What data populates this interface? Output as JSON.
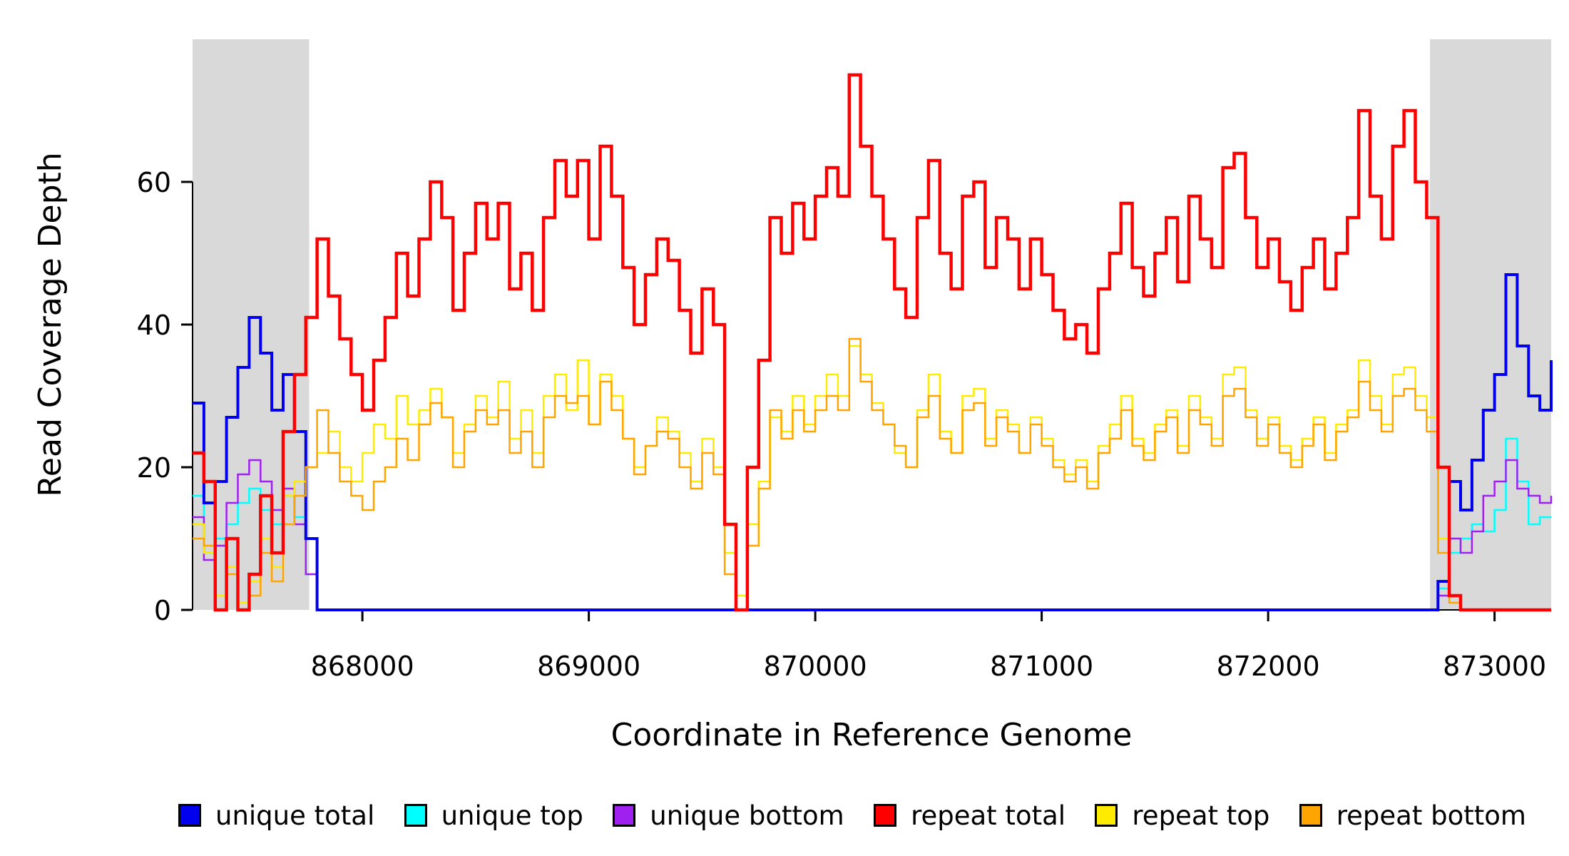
{
  "figure": {
    "background": "#FFFFFF"
  },
  "chart_data": {
    "type": "line",
    "title": "",
    "xlabel": "Coordinate in Reference Genome",
    "ylabel": "Read Coverage Depth",
    "xlim": [
      867250,
      873250
    ],
    "ylim": [
      0,
      80
    ],
    "x_ticks": [
      868000,
      869000,
      870000,
      871000,
      872000,
      873000
    ],
    "y_ticks": [
      0,
      20,
      40,
      60
    ],
    "grid": false,
    "step": true,
    "legend_position": "bottom",
    "x_start": 867250,
    "x_step": 50,
    "shaded_regions": {
      "color": "#D9D9D9",
      "ranges": [
        [
          867250,
          867765
        ],
        [
          872715,
          873250
        ]
      ]
    },
    "series": [
      {
        "name": "unique total",
        "color": "#0000EE",
        "values": [
          29,
          15,
          18,
          27,
          34,
          41,
          36,
          28,
          33,
          25,
          10,
          0,
          0,
          0,
          0,
          0,
          0,
          0,
          0,
          0,
          0,
          0,
          0,
          0,
          0,
          0,
          0,
          0,
          0,
          0,
          0,
          0,
          0,
          0,
          0,
          0,
          0,
          0,
          0,
          0,
          0,
          0,
          0,
          0,
          0,
          0,
          0,
          0,
          0,
          0,
          0,
          0,
          0,
          0,
          0,
          0,
          0,
          0,
          0,
          0,
          0,
          0,
          0,
          0,
          0,
          0,
          0,
          0,
          0,
          0,
          0,
          0,
          0,
          0,
          0,
          0,
          0,
          0,
          0,
          0,
          0,
          0,
          0,
          0,
          0,
          0,
          0,
          0,
          0,
          0,
          0,
          0,
          0,
          0,
          0,
          0,
          0,
          0,
          0,
          0,
          0,
          0,
          0,
          0,
          0,
          0,
          0,
          0,
          0,
          0,
          4,
          18,
          14,
          21,
          28,
          33,
          47,
          37,
          30,
          28,
          35
        ]
      },
      {
        "name": "unique top",
        "color": "#00FFFF",
        "values": [
          16,
          8,
          10,
          12,
          15,
          17,
          14,
          12,
          16,
          13,
          5,
          0,
          0,
          0,
          0,
          0,
          0,
          0,
          0,
          0,
          0,
          0,
          0,
          0,
          0,
          0,
          0,
          0,
          0,
          0,
          0,
          0,
          0,
          0,
          0,
          0,
          0,
          0,
          0,
          0,
          0,
          0,
          0,
          0,
          0,
          0,
          0,
          0,
          0,
          0,
          0,
          0,
          0,
          0,
          0,
          0,
          0,
          0,
          0,
          0,
          0,
          0,
          0,
          0,
          0,
          0,
          0,
          0,
          0,
          0,
          0,
          0,
          0,
          0,
          0,
          0,
          0,
          0,
          0,
          0,
          0,
          0,
          0,
          0,
          0,
          0,
          0,
          0,
          0,
          0,
          0,
          0,
          0,
          0,
          0,
          0,
          0,
          0,
          0,
          0,
          0,
          0,
          0,
          0,
          0,
          0,
          0,
          0,
          0,
          0,
          3,
          8,
          10,
          12,
          11,
          14,
          24,
          18,
          12,
          13,
          13
        ]
      },
      {
        "name": "unique bottom",
        "color": "#A020F0",
        "values": [
          13,
          7,
          9,
          15,
          19,
          21,
          18,
          14,
          17,
          12,
          5,
          0,
          0,
          0,
          0,
          0,
          0,
          0,
          0,
          0,
          0,
          0,
          0,
          0,
          0,
          0,
          0,
          0,
          0,
          0,
          0,
          0,
          0,
          0,
          0,
          0,
          0,
          0,
          0,
          0,
          0,
          0,
          0,
          0,
          0,
          0,
          0,
          0,
          0,
          0,
          0,
          0,
          0,
          0,
          0,
          0,
          0,
          0,
          0,
          0,
          0,
          0,
          0,
          0,
          0,
          0,
          0,
          0,
          0,
          0,
          0,
          0,
          0,
          0,
          0,
          0,
          0,
          0,
          0,
          0,
          0,
          0,
          0,
          0,
          0,
          0,
          0,
          0,
          0,
          0,
          0,
          0,
          0,
          0,
          0,
          0,
          0,
          0,
          0,
          0,
          0,
          0,
          0,
          0,
          0,
          0,
          0,
          0,
          0,
          0,
          2,
          10,
          8,
          11,
          16,
          18,
          21,
          17,
          16,
          15,
          16
        ]
      },
      {
        "name": "repeat total",
        "color": "#FF0000",
        "values": [
          22,
          18,
          0,
          10,
          0,
          5,
          16,
          8,
          25,
          33,
          41,
          52,
          44,
          38,
          33,
          28,
          35,
          41,
          50,
          44,
          52,
          60,
          55,
          42,
          50,
          57,
          52,
          57,
          45,
          50,
          42,
          55,
          63,
          58,
          63,
          52,
          65,
          58,
          48,
          40,
          47,
          52,
          49,
          42,
          36,
          45,
          40,
          12,
          0,
          20,
          35,
          55,
          50,
          57,
          52,
          58,
          62,
          58,
          75,
          65,
          58,
          52,
          45,
          41,
          55,
          63,
          50,
          45,
          58,
          60,
          48,
          55,
          52,
          45,
          52,
          47,
          42,
          38,
          40,
          36,
          45,
          50,
          57,
          48,
          44,
          50,
          55,
          46,
          58,
          52,
          48,
          62,
          64,
          55,
          48,
          52,
          46,
          42,
          48,
          52,
          45,
          50,
          55,
          70,
          58,
          52,
          65,
          70,
          60,
          55,
          20,
          2,
          0,
          0,
          0,
          0,
          0,
          0,
          0,
          0,
          0
        ]
      },
      {
        "name": "repeat top",
        "color": "#FFEB00",
        "values": [
          12,
          8,
          2,
          6,
          1,
          4,
          10,
          6,
          16,
          18,
          20,
          22,
          25,
          20,
          18,
          22,
          26,
          24,
          30,
          26,
          28,
          31,
          27,
          22,
          26,
          30,
          27,
          32,
          24,
          28,
          22,
          30,
          33,
          28,
          35,
          26,
          33,
          30,
          24,
          20,
          23,
          27,
          25,
          22,
          18,
          24,
          20,
          8,
          2,
          12,
          18,
          27,
          25,
          30,
          26,
          30,
          33,
          30,
          37,
          33,
          29,
          26,
          22,
          20,
          28,
          33,
          25,
          22,
          30,
          31,
          24,
          28,
          26,
          22,
          27,
          24,
          21,
          19,
          21,
          18,
          23,
          26,
          30,
          24,
          22,
          26,
          28,
          23,
          30,
          27,
          24,
          33,
          34,
          28,
          24,
          27,
          23,
          21,
          24,
          27,
          22,
          26,
          28,
          35,
          30,
          26,
          33,
          34,
          30,
          27,
          10,
          2,
          0,
          0,
          0,
          0,
          0,
          0,
          0,
          0,
          0
        ]
      },
      {
        "name": "repeat bottom",
        "color": "#FFA500",
        "values": [
          10,
          9,
          0,
          5,
          0,
          2,
          8,
          4,
          12,
          16,
          20,
          28,
          22,
          18,
          16,
          14,
          18,
          20,
          24,
          21,
          26,
          29,
          27,
          20,
          25,
          28,
          26,
          28,
          22,
          25,
          20,
          27,
          30,
          29,
          30,
          26,
          32,
          28,
          24,
          19,
          23,
          25,
          24,
          20,
          17,
          22,
          19,
          5,
          0,
          9,
          17,
          28,
          24,
          28,
          25,
          28,
          30,
          28,
          38,
          32,
          28,
          26,
          23,
          20,
          27,
          30,
          24,
          22,
          28,
          29,
          23,
          27,
          25,
          22,
          26,
          23,
          20,
          18,
          20,
          17,
          22,
          24,
          28,
          23,
          21,
          25,
          27,
          22,
          28,
          26,
          23,
          30,
          31,
          27,
          23,
          26,
          22,
          20,
          23,
          26,
          21,
          25,
          27,
          32,
          28,
          25,
          30,
          31,
          28,
          25,
          8,
          1,
          0,
          0,
          0,
          0,
          0,
          0,
          0,
          0,
          0
        ]
      }
    ]
  }
}
